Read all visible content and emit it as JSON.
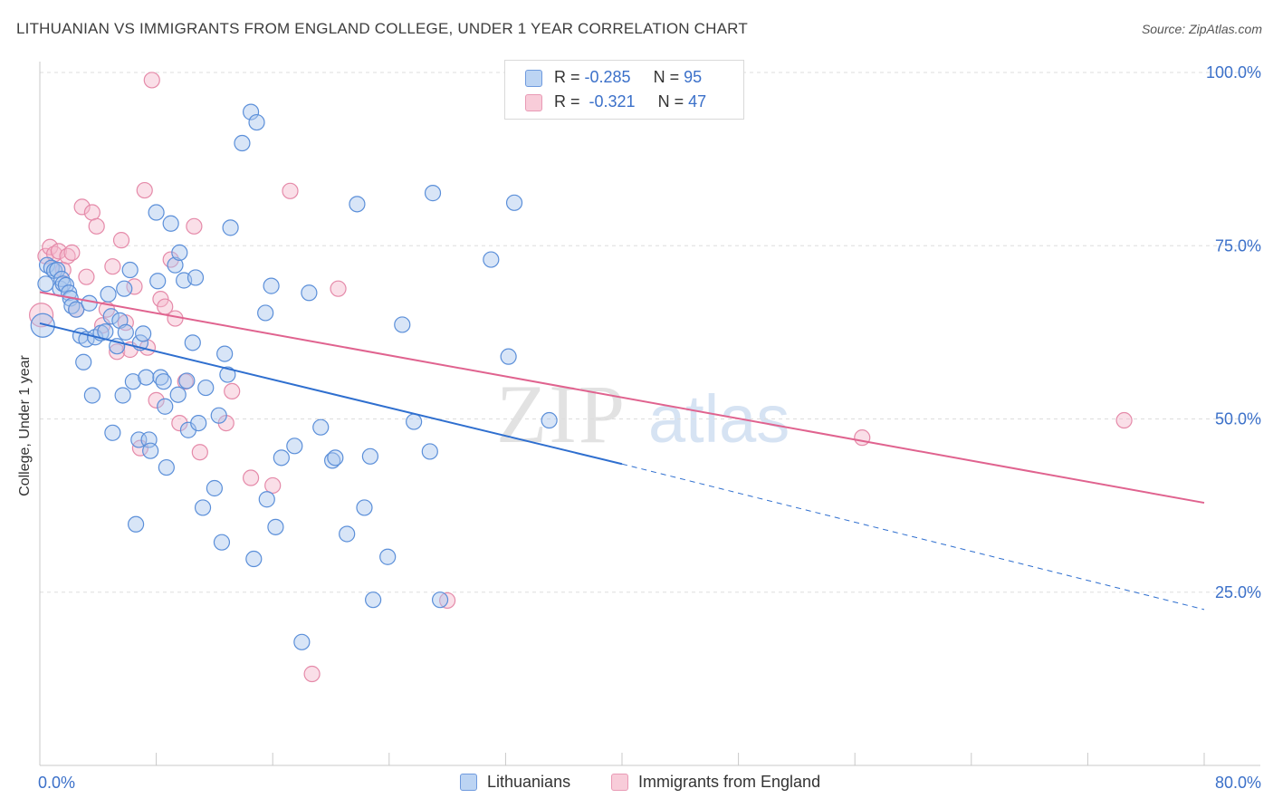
{
  "title": "LITHUANIAN VS IMMIGRANTS FROM ENGLAND COLLEGE, UNDER 1 YEAR CORRELATION CHART",
  "source": "Source: ZipAtlas.com",
  "watermark": {
    "zip": "ZIP",
    "atlas": "atlas"
  },
  "legend_top": {
    "rows": [
      {
        "r_label": "R =",
        "r_value": "-0.285",
        "n_label": "N =",
        "n_value": "95"
      },
      {
        "r_label": "R =",
        "r_value": "-0.321",
        "n_label": "N =",
        "n_value": "47"
      }
    ]
  },
  "legend_bottom": [
    "Lithuanians",
    "Immigrants from England"
  ],
  "colors": {
    "blue_fill": "#a9c6ee",
    "blue_stroke": "#5b8fd9",
    "blue_line": "#2f6fcf",
    "pink_fill": "#f5b8cb",
    "pink_stroke": "#e58aa9",
    "pink_line": "#e0638f",
    "tick_text": "#3b70c9",
    "grid": "#dddddd"
  },
  "chart_data": {
    "type": "scatter",
    "title": "LITHUANIAN VS IMMIGRANTS FROM ENGLAND COLLEGE, UNDER 1 YEAR CORRELATION CHART",
    "xlabel": "",
    "ylabel": "College, Under 1 year",
    "xlim": [
      0,
      80
    ],
    "ylim": [
      0,
      100
    ],
    "x_tick_labels": [
      "0.0%",
      "80.0%"
    ],
    "y_ticks": [
      25,
      50,
      75,
      100
    ],
    "y_tick_labels": [
      "25.0%",
      "50.0%",
      "75.0%",
      "100.0%"
    ],
    "grid": "horizontal dashed",
    "series": [
      {
        "name": "Lithuanians",
        "R": -0.285,
        "N": 95,
        "trend": {
          "x": [
            0,
            40
          ],
          "y": [
            63.8,
            43.5
          ],
          "dashed_to": [
            80,
            22.5
          ]
        },
        "points": [
          [
            0.2,
            63.5
          ],
          [
            0.4,
            69.5
          ],
          [
            0.5,
            72.2
          ],
          [
            0.8,
            71.8
          ],
          [
            1.0,
            71.4
          ],
          [
            1.2,
            71.5
          ],
          [
            1.4,
            68.8
          ],
          [
            1.5,
            70.2
          ],
          [
            1.6,
            69.5
          ],
          [
            1.8,
            69.3
          ],
          [
            2.0,
            68.2
          ],
          [
            2.1,
            67.4
          ],
          [
            2.2,
            66.3
          ],
          [
            2.5,
            65.8
          ],
          [
            2.8,
            62.0
          ],
          [
            3.0,
            58.2
          ],
          [
            3.2,
            61.5
          ],
          [
            3.4,
            66.7
          ],
          [
            3.6,
            53.4
          ],
          [
            3.8,
            61.8
          ],
          [
            4.2,
            62.4
          ],
          [
            4.5,
            62.6
          ],
          [
            4.7,
            68.0
          ],
          [
            4.9,
            64.8
          ],
          [
            5.0,
            48.0
          ],
          [
            5.3,
            60.5
          ],
          [
            5.5,
            64.2
          ],
          [
            5.7,
            53.4
          ],
          [
            5.8,
            68.8
          ],
          [
            5.9,
            62.5
          ],
          [
            6.2,
            71.5
          ],
          [
            6.4,
            55.4
          ],
          [
            6.6,
            34.8
          ],
          [
            6.8,
            47.0
          ],
          [
            6.9,
            61.0
          ],
          [
            7.1,
            62.3
          ],
          [
            7.3,
            56.0
          ],
          [
            7.5,
            47.0
          ],
          [
            7.6,
            45.4
          ],
          [
            8.0,
            79.8
          ],
          [
            8.1,
            69.9
          ],
          [
            8.3,
            56.0
          ],
          [
            8.5,
            55.4
          ],
          [
            8.6,
            51.8
          ],
          [
            8.7,
            43.0
          ],
          [
            9.0,
            78.2
          ],
          [
            9.3,
            72.2
          ],
          [
            9.5,
            53.5
          ],
          [
            9.6,
            74.0
          ],
          [
            9.9,
            70.0
          ],
          [
            10.1,
            55.5
          ],
          [
            10.2,
            48.4
          ],
          [
            10.5,
            61.0
          ],
          [
            10.7,
            70.4
          ],
          [
            10.9,
            49.4
          ],
          [
            11.2,
            37.2
          ],
          [
            11.4,
            54.5
          ],
          [
            12.0,
            40.0
          ],
          [
            12.3,
            50.5
          ],
          [
            12.5,
            32.2
          ],
          [
            12.7,
            59.4
          ],
          [
            12.9,
            56.4
          ],
          [
            13.1,
            77.6
          ],
          [
            13.9,
            89.8
          ],
          [
            14.5,
            94.3
          ],
          [
            14.7,
            29.8
          ],
          [
            14.9,
            92.8
          ],
          [
            15.5,
            65.3
          ],
          [
            15.6,
            38.4
          ],
          [
            15.9,
            69.2
          ],
          [
            16.2,
            34.4
          ],
          [
            16.6,
            44.4
          ],
          [
            17.5,
            46.1
          ],
          [
            18.0,
            17.8
          ],
          [
            18.5,
            68.2
          ],
          [
            19.3,
            48.8
          ],
          [
            20.1,
            44.0
          ],
          [
            20.3,
            44.4
          ],
          [
            21.1,
            33.4
          ],
          [
            21.8,
            81.0
          ],
          [
            22.3,
            37.2
          ],
          [
            22.7,
            44.6
          ],
          [
            22.9,
            23.9
          ],
          [
            23.9,
            30.1
          ],
          [
            24.9,
            63.6
          ],
          [
            25.7,
            49.6
          ],
          [
            26.8,
            45.3
          ],
          [
            27.0,
            82.6
          ],
          [
            27.5,
            23.9
          ],
          [
            31.0,
            73.0
          ],
          [
            32.2,
            59.0
          ],
          [
            32.6,
            81.2
          ],
          [
            35.0,
            49.8
          ]
        ]
      },
      {
        "name": "Immigrants from England",
        "R": -0.321,
        "N": 47,
        "trend": {
          "x": [
            0,
            80
          ],
          "y": [
            68.3,
            37.9
          ]
        },
        "points": [
          [
            0.1,
            65.0
          ],
          [
            0.4,
            73.5
          ],
          [
            0.7,
            74.8
          ],
          [
            1.0,
            73.8
          ],
          [
            1.3,
            74.2
          ],
          [
            1.6,
            71.5
          ],
          [
            1.9,
            73.5
          ],
          [
            2.2,
            74.0
          ],
          [
            2.5,
            65.8
          ],
          [
            2.9,
            80.6
          ],
          [
            3.2,
            70.5
          ],
          [
            3.6,
            79.8
          ],
          [
            3.9,
            77.8
          ],
          [
            4.3,
            63.5
          ],
          [
            4.6,
            65.8
          ],
          [
            5.0,
            72.0
          ],
          [
            5.3,
            59.7
          ],
          [
            5.6,
            75.8
          ],
          [
            5.9,
            63.9
          ],
          [
            6.2,
            60.0
          ],
          [
            6.5,
            69.1
          ],
          [
            6.9,
            45.8
          ],
          [
            7.2,
            83.0
          ],
          [
            7.4,
            60.3
          ],
          [
            7.7,
            98.9
          ],
          [
            8.0,
            52.7
          ],
          [
            8.3,
            67.3
          ],
          [
            8.6,
            66.2
          ],
          [
            9.0,
            73.0
          ],
          [
            9.3,
            64.5
          ],
          [
            9.6,
            49.4
          ],
          [
            10.0,
            55.4
          ],
          [
            10.6,
            77.8
          ],
          [
            11.0,
            45.2
          ],
          [
            12.8,
            49.4
          ],
          [
            13.2,
            54.0
          ],
          [
            14.5,
            41.5
          ],
          [
            16.0,
            40.4
          ],
          [
            17.2,
            82.9
          ],
          [
            18.7,
            13.2
          ],
          [
            20.5,
            68.8
          ],
          [
            28.0,
            23.8
          ],
          [
            33.0,
            99.8
          ],
          [
            56.5,
            47.3
          ],
          [
            74.5,
            49.8
          ]
        ]
      }
    ]
  }
}
